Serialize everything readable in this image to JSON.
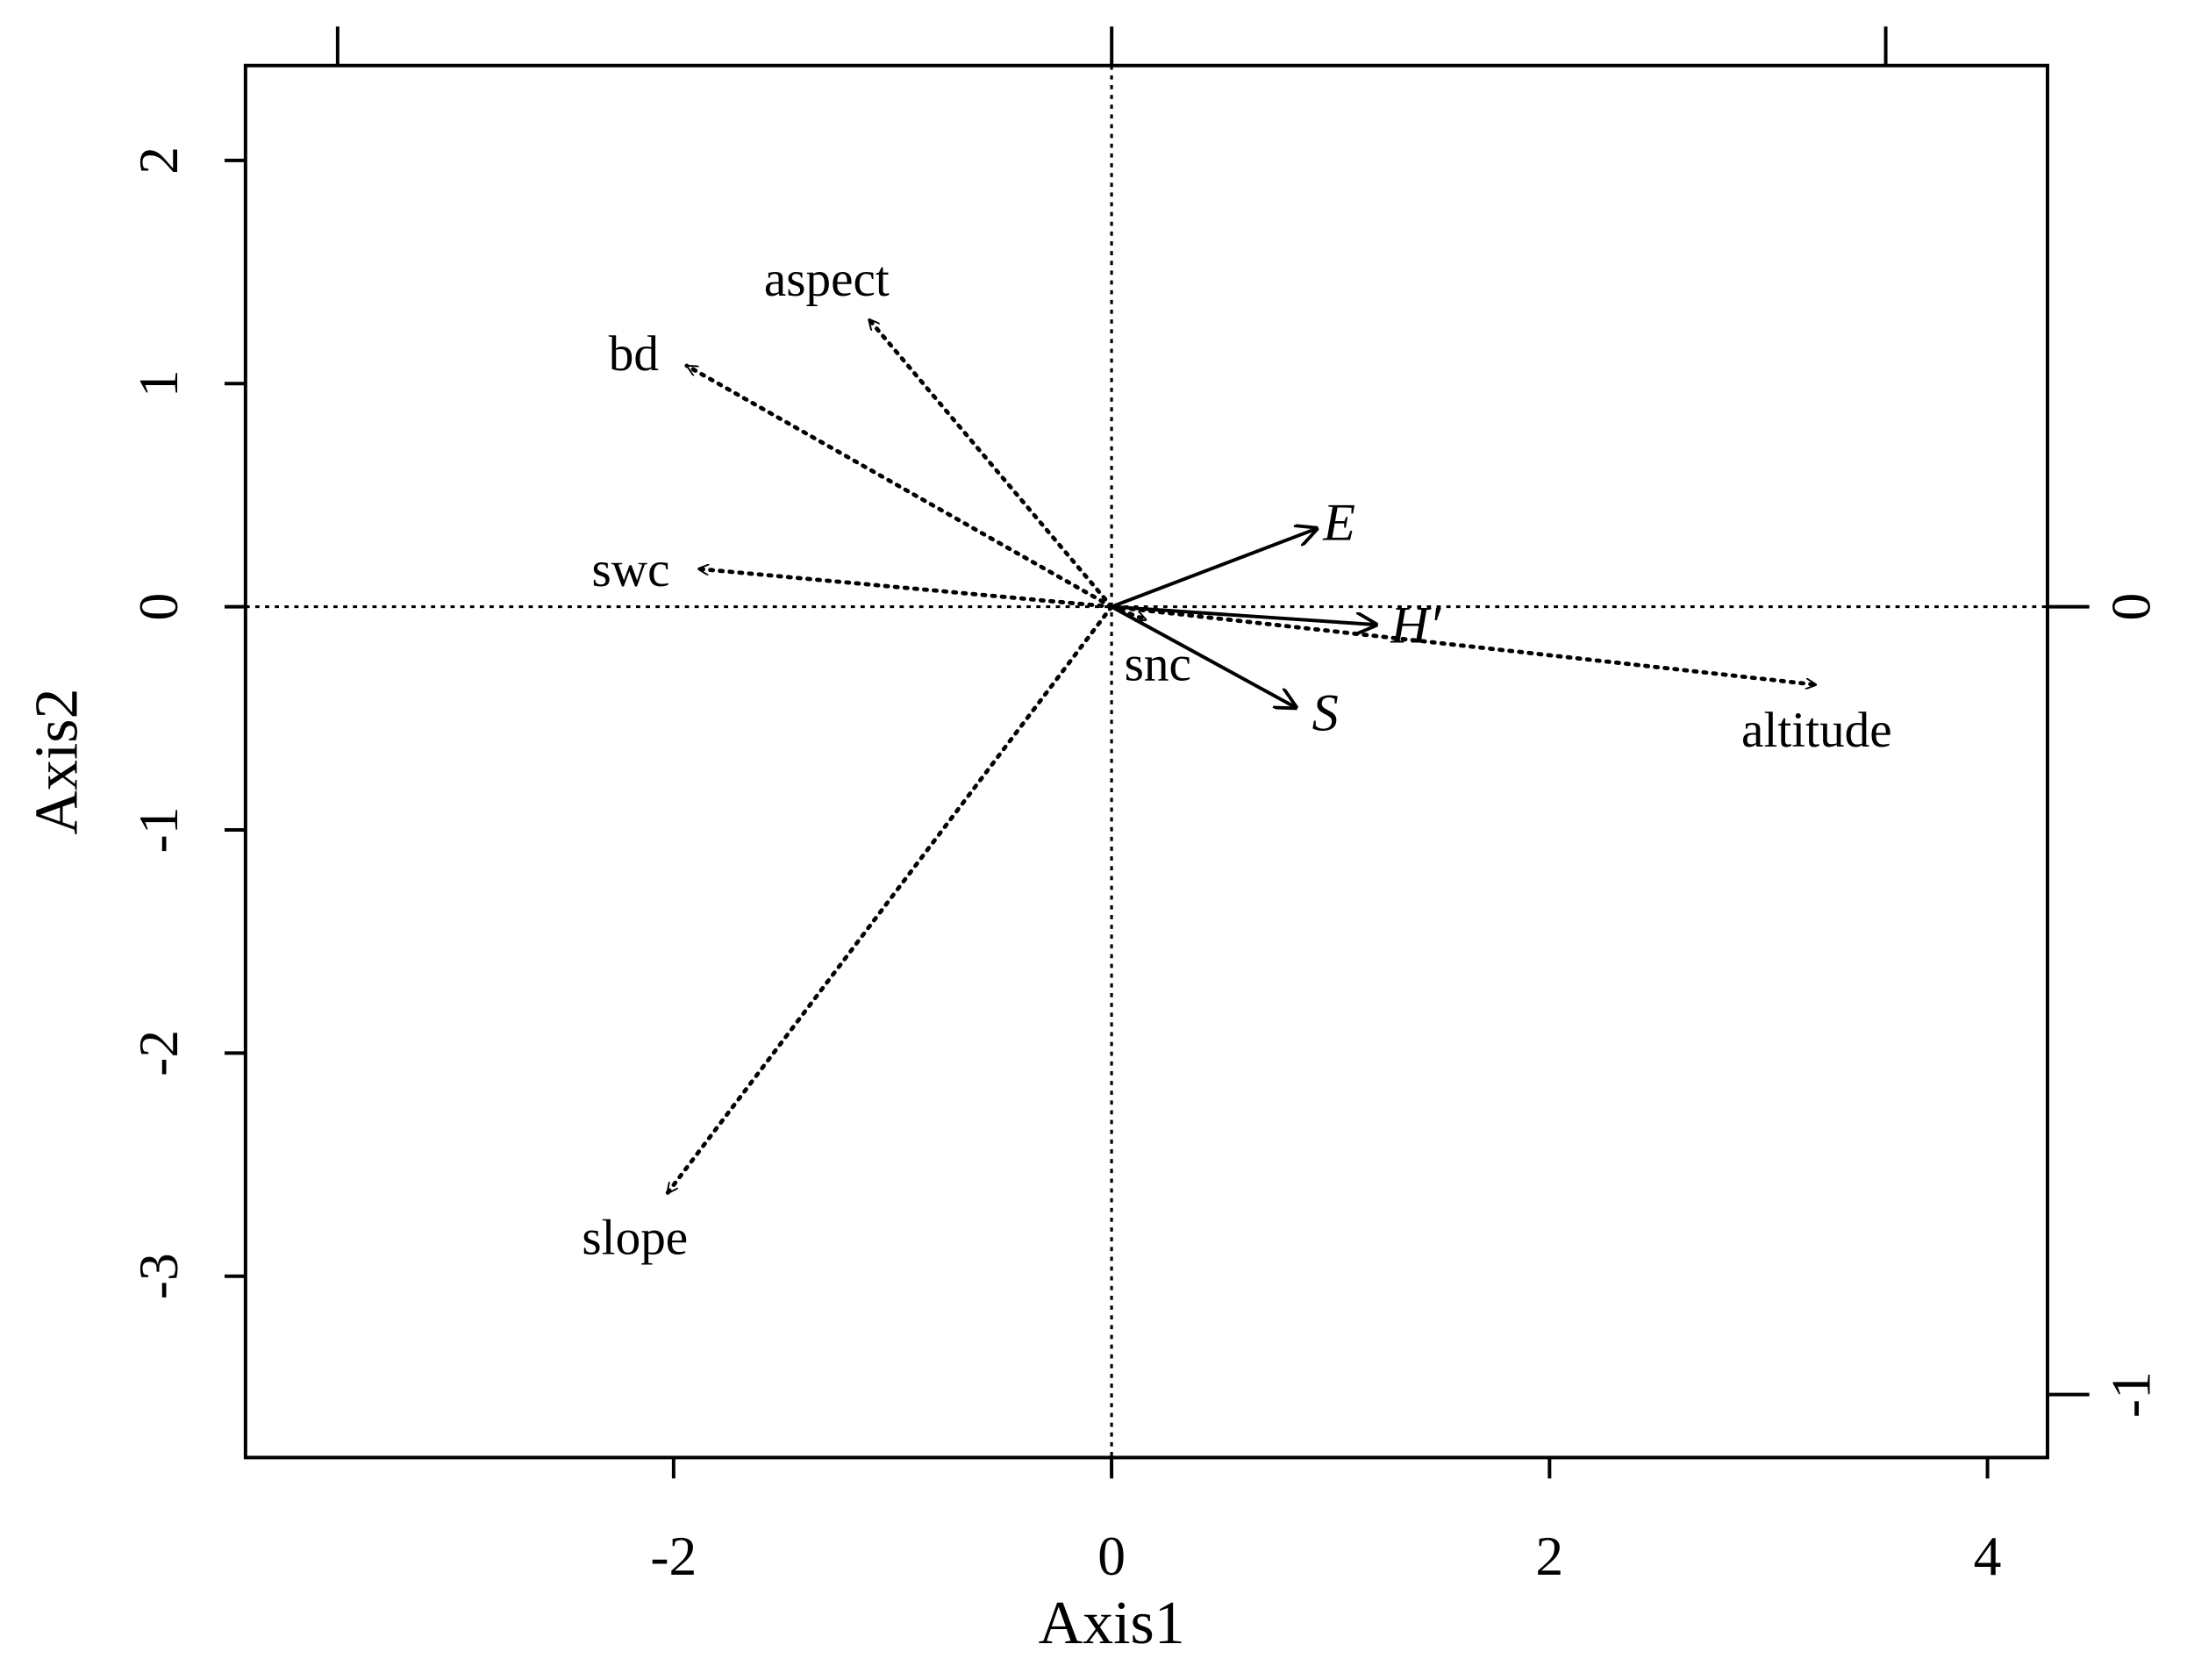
{
  "chart_data": {
    "type": "biplot",
    "xlabel": "Axis1",
    "ylabel": "Axis2",
    "xlim": [
      -3.955,
      4.274
    ],
    "ylim": [
      -3.8125,
      2.425
    ],
    "xticks": [
      -2,
      0,
      2,
      4
    ],
    "yticks": [
      -3,
      -2,
      -1,
      0,
      1,
      2
    ],
    "x2lim": [
      -1.119,
      1.209
    ],
    "y2lim": [
      -1.08,
      0.687
    ],
    "x2ticks": [
      -1,
      0,
      1
    ],
    "y2ticks": [
      -1,
      0
    ],
    "env_arrows": [
      {
        "label": "aspect",
        "x": -1.11,
        "y": 1.29
      },
      {
        "label": "bd",
        "x": -1.94,
        "y": 1.08
      },
      {
        "label": "swc",
        "x": -1.89,
        "y": 0.17
      },
      {
        "label": "slope",
        "x": -2.03,
        "y": -2.63
      },
      {
        "label": "altitude",
        "x": 3.22,
        "y": -0.35
      },
      {
        "label": "snc",
        "x": 0.16,
        "y": -0.06
      }
    ],
    "species_arrows": [
      {
        "label": "E",
        "x": 0.267,
        "y": 0.1
      },
      {
        "label": "H′",
        "x": 0.344,
        "y": -0.023
      },
      {
        "label": "S",
        "x": 0.24,
        "y": -0.129
      }
    ]
  }
}
